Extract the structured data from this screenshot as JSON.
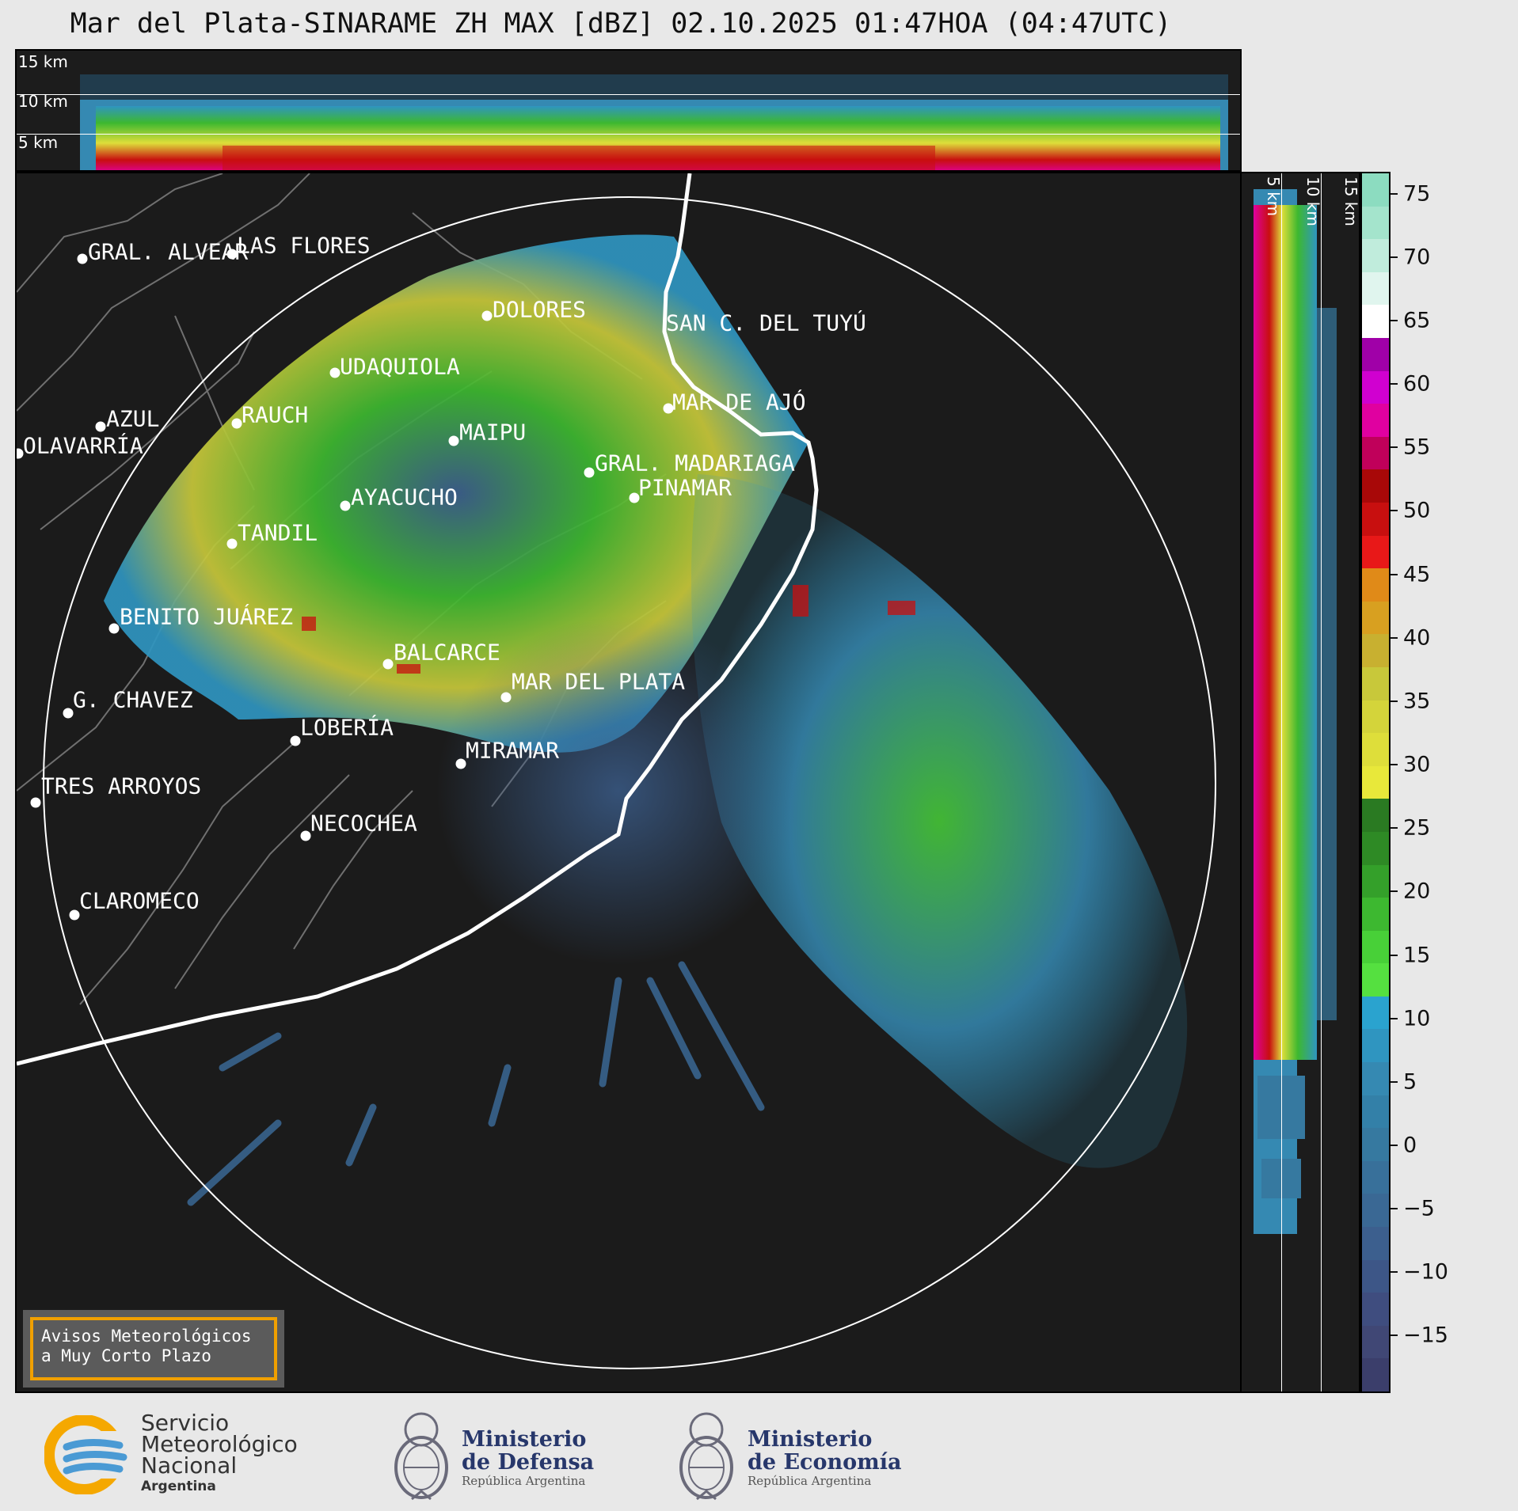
{
  "title": "Mar del Plata-SINARAME ZH MAX [dBZ] 02.10.2025 01:47HOA (04:47UTC)",
  "altitudes": [
    "15 km",
    "10 km",
    "5 km"
  ],
  "cities": [
    {
      "name": "GRAL. ALVEAR"
    },
    {
      "name": "LAS FLORES"
    },
    {
      "name": "DOLORES"
    },
    {
      "name": "SAN C. DEL TUYÚ"
    },
    {
      "name": "UDAQUIOLA"
    },
    {
      "name": "MAR DE AJÓ"
    },
    {
      "name": "RAUCH"
    },
    {
      "name": "AZUL"
    },
    {
      "name": "MAIPU"
    },
    {
      "name": "OLAVARRÍA"
    },
    {
      "name": "GRAL. MADARIAGA"
    },
    {
      "name": "PINAMAR"
    },
    {
      "name": "AYACUCHO"
    },
    {
      "name": "TANDIL"
    },
    {
      "name": "BENITO JUÁREZ"
    },
    {
      "name": "BALCARCE"
    },
    {
      "name": "MAR DEL PLATA"
    },
    {
      "name": "G. CHAVEZ"
    },
    {
      "name": "LOBERÍA"
    },
    {
      "name": "MIRAMAR"
    },
    {
      "name": "TRES ARROYOS"
    },
    {
      "name": "NECOCHEA"
    },
    {
      "name": "CLAROMECO"
    }
  ],
  "colorbar": {
    "unit": "dBZ",
    "ticks": [
      "75",
      "70",
      "65",
      "60",
      "55",
      "50",
      "45",
      "40",
      "35",
      "30",
      "25",
      "20",
      "15",
      "10",
      "5",
      "0",
      "−5",
      "−10",
      "−15"
    ],
    "colors": [
      "#3b3e6b",
      "#404775",
      "#3f4d7f",
      "#3d5687",
      "#3c5f8e",
      "#3a6894",
      "#38709a",
      "#3679a0",
      "#3380a8",
      "#3589b2",
      "#2f95c0",
      "#2aa3cf",
      "#55e040",
      "#48d038",
      "#3db830",
      "#34a02a",
      "#2e8a25",
      "#2a7a22",
      "#e8e83a",
      "#dede3a",
      "#d4d43a",
      "#c8c83a",
      "#c8b030",
      "#d8a020",
      "#e08a18",
      "#e81818",
      "#c80f0f",
      "#a80808",
      "#c0005a",
      "#e000a0",
      "#d000d0",
      "#a000a8",
      "#ffffff",
      "#e0f5ee",
      "#c0ecdc",
      "#a4e4cc",
      "#8cdcc0"
    ],
    "min": -19.4,
    "max": 76.6
  },
  "avisos": {
    "line1": "Avisos Meteorológicos",
    "line2": "a Muy Corto Plazo"
  },
  "footer": {
    "smn_line1": "Servicio",
    "smn_line2": "Meteorológico",
    "smn_line3": "Nacional",
    "smn_line4": "Argentina",
    "defensa_title1": "Ministerio",
    "defensa_title2": "de Defensa",
    "defensa_sub": "República Argentina",
    "economia_title1": "Ministerio",
    "economia_title2": "de Economía",
    "economia_sub": "República Argentina"
  }
}
